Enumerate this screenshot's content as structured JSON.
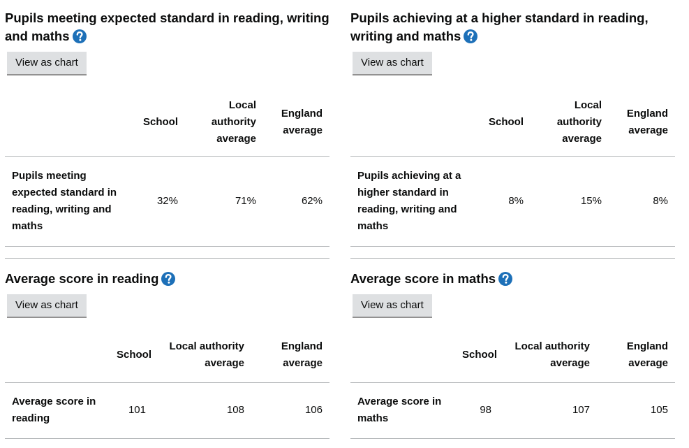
{
  "panels": [
    {
      "title": "Pupils meeting expected standard in reading, writing and maths",
      "button": "View as chart",
      "table": {
        "columns": [
          "School",
          "Local authority average",
          "England average"
        ],
        "rows": [
          {
            "label": "Pupils meeting expected standard in reading, writing and maths",
            "values": [
              "32%",
              "71%",
              "62%"
            ]
          }
        ]
      }
    },
    {
      "title": "Pupils achieving at a higher standard in reading, writing and maths",
      "button": "View as chart",
      "table": {
        "columns": [
          "School",
          "Local authority average",
          "England average"
        ],
        "rows": [
          {
            "label": "Pupils achieving at a higher standard in reading, writing and maths",
            "values": [
              "8%",
              "15%",
              "8%"
            ]
          }
        ]
      }
    },
    {
      "title": "Average score in reading",
      "button": "View as chart",
      "table": {
        "columns": [
          "School",
          "Local authority average",
          "England average"
        ],
        "rows": [
          {
            "label": "Average score in reading",
            "values": [
              "101",
              "108",
              "106"
            ]
          }
        ]
      }
    },
    {
      "title": "Average score in maths",
      "button": "View as chart",
      "table": {
        "columns": [
          "School",
          "Local authority average",
          "England average"
        ],
        "rows": [
          {
            "label": "Average score in maths",
            "values": [
              "98",
              "107",
              "105"
            ]
          }
        ]
      }
    }
  ]
}
